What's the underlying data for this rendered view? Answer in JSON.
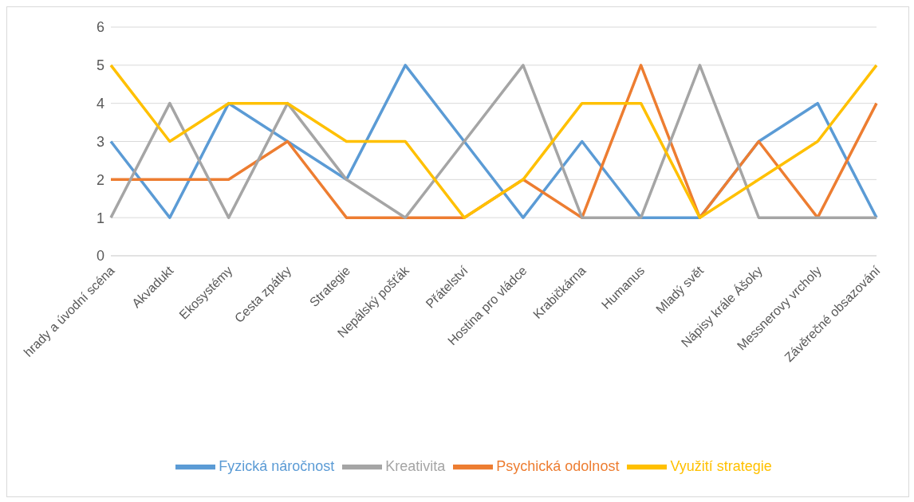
{
  "chart_data": {
    "type": "line",
    "categories": [
      "hrady a úvodní scéna",
      "Akvadukt",
      "Ekosystémy",
      "Cesta zpátky",
      "Strategie",
      "Nepálský pošťák",
      "Přátelství",
      "Hostina pro vládce",
      "Krabičkárna",
      "Humanus",
      "Mladý svět",
      "Nápisy krále Ášoky",
      "Messnerovy vrcholy",
      "Závěrečné obsazování"
    ],
    "series": [
      {
        "name": "Fyzická náročnost",
        "color": "#5b9bd5",
        "values": [
          3,
          1,
          4,
          3,
          2,
          5,
          3,
          1,
          3,
          1,
          1,
          3,
          4,
          1
        ]
      },
      {
        "name": "Psychická odolnost",
        "color": "#ed7d31",
        "values": [
          2,
          2,
          2,
          3,
          1,
          1,
          1,
          2,
          1,
          5,
          1,
          3,
          1,
          4
        ]
      },
      {
        "name": "Kreativita",
        "color": "#a5a5a5",
        "values": [
          1,
          4,
          1,
          4,
          2,
          1,
          3,
          5,
          1,
          1,
          5,
          1,
          1,
          1
        ]
      },
      {
        "name": "Využití strategie",
        "color": "#ffc000",
        "values": [
          5,
          3,
          4,
          4,
          3,
          3,
          1,
          2,
          4,
          4,
          1,
          2,
          3,
          5
        ]
      }
    ],
    "ylim": [
      0,
      6
    ],
    "yticks": [
      0,
      1,
      2,
      3,
      4,
      5,
      6
    ],
    "grid": "y",
    "legend": "bottom",
    "marker": "none",
    "line_style": "solid"
  }
}
